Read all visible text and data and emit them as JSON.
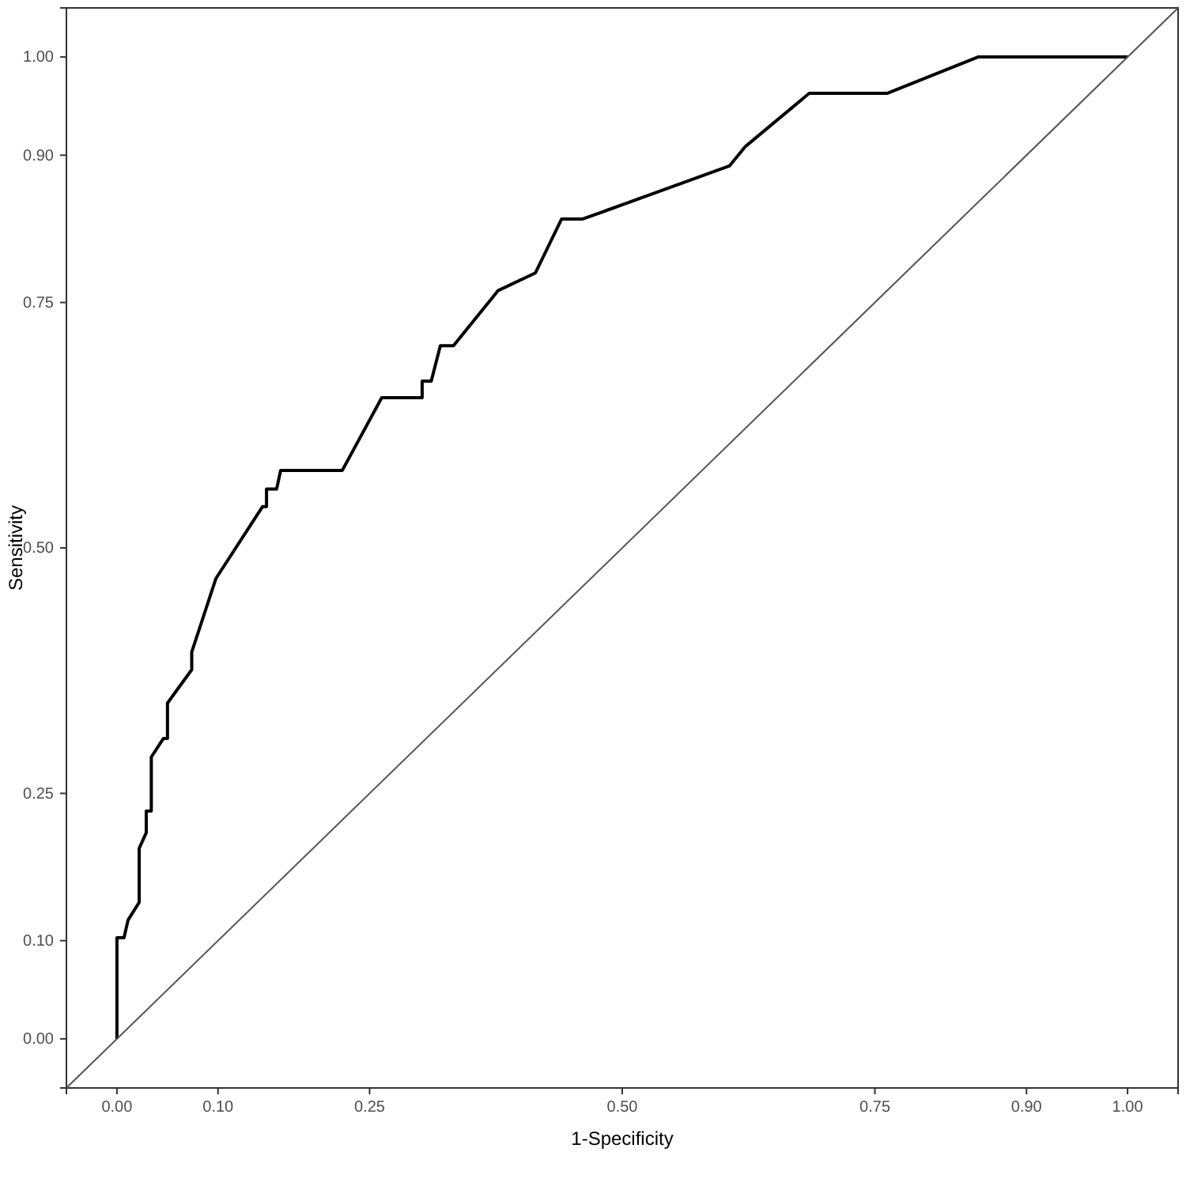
{
  "chart_data": {
    "type": "line",
    "xlabel": "1-Specificity",
    "ylabel": "Sensitivity",
    "xlim": [
      -0.05,
      1.05
    ],
    "ylim": [
      -0.05,
      1.05
    ],
    "xticks": [
      {
        "value": 0,
        "label": "0.00"
      },
      {
        "value": 0.1,
        "label": "0.10"
      },
      {
        "value": 0.25,
        "label": "0.25"
      },
      {
        "value": 0.5,
        "label": "0.50"
      },
      {
        "value": 0.75,
        "label": "0.75"
      },
      {
        "value": 0.9,
        "label": "0.90"
      },
      {
        "value": 1,
        "label": "1.00"
      }
    ],
    "yticks": [
      {
        "value": 0,
        "label": "0.00"
      },
      {
        "value": 0.1,
        "label": "0.10"
      },
      {
        "value": 0.25,
        "label": "0.25"
      },
      {
        "value": 0.5,
        "label": "0.50"
      },
      {
        "value": 0.75,
        "label": "0.75"
      },
      {
        "value": 0.9,
        "label": "0.90"
      },
      {
        "value": 1,
        "label": "1.00"
      }
    ],
    "grid": false,
    "line_style": "solid",
    "marker": "none",
    "series": [
      {
        "color": "#000000",
        "x": [
          0,
          0,
          0.007,
          0.011,
          0.022,
          0.022,
          0.029,
          0.029,
          0.034,
          0.034,
          0.046,
          0.05,
          0.05,
          0.074,
          0.074,
          0.098,
          0.144,
          0.148,
          0.148,
          0.158,
          0.162,
          0.223,
          0.262,
          0.302,
          0.302,
          0.311,
          0.32,
          0.333,
          0.377,
          0.414,
          0.44,
          0.461,
          0.606,
          0.622,
          0.685,
          0.762,
          0.852,
          1
        ],
        "values": [
          0,
          0.103,
          0.103,
          0.121,
          0.139,
          0.194,
          0.21,
          0.232,
          0.232,
          0.287,
          0.306,
          0.306,
          0.342,
          0.376,
          0.394,
          0.469,
          0.542,
          0.542,
          0.56,
          0.56,
          0.579,
          0.579,
          0.653,
          0.653,
          0.67,
          0.67,
          0.706,
          0.706,
          0.762,
          0.78,
          0.835,
          0.835,
          0.889,
          0.909,
          0.963,
          0.963,
          1,
          1
        ]
      },
      {
        "color": "#555555",
        "x": [
          -0.05,
          1.05
        ],
        "values": [
          -0.05,
          1.05
        ]
      }
    ]
  }
}
